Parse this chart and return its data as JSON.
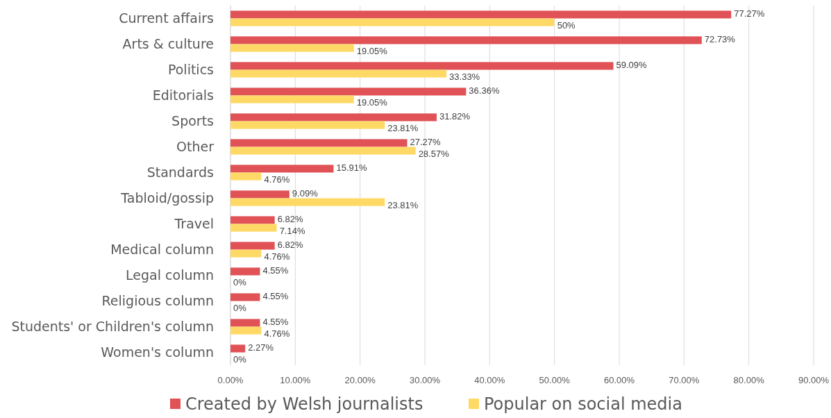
{
  "chart_data": {
    "type": "bar",
    "orientation": "horizontal",
    "categories": [
      "Current affairs",
      "Arts & culture",
      "Politics",
      "Editorials",
      "Sports",
      "Other",
      "Standards",
      "Tabloid/gossip",
      "Travel",
      "Medical column",
      "Legal column",
      "Religious column",
      "Students' or Children's column",
      "Women's column"
    ],
    "series": [
      {
        "name": "Created by Welsh journalists",
        "color": "#e05255",
        "values": [
          77.27,
          72.73,
          59.09,
          36.36,
          31.82,
          27.27,
          15.91,
          9.09,
          6.82,
          6.82,
          4.55,
          4.55,
          4.55,
          2.27
        ],
        "value_labels": [
          "77.27%",
          "72.73%",
          "59.09%",
          "36.36%",
          "31.82%",
          "27.27%",
          "15.91%",
          "9.09%",
          "6.82%",
          "6.82%",
          "4.55%",
          "4.55%",
          "4.55%",
          "2.27%"
        ]
      },
      {
        "name": "Popular on social media",
        "color": "#ffd966",
        "values": [
          50,
          19.05,
          33.33,
          19.05,
          23.81,
          28.57,
          4.76,
          23.81,
          7.14,
          4.76,
          0,
          0,
          4.76,
          0
        ],
        "value_labels": [
          "50%",
          "19.05%",
          "33.33%",
          "19.05%",
          "23.81%",
          "28.57%",
          "4.76%",
          "23.81%",
          "7.14%",
          "4.76%",
          "0%",
          "0%",
          "4.76%",
          "0%"
        ]
      }
    ],
    "xlim": [
      0,
      90
    ],
    "xticks": [
      {
        "value": 0,
        "label": "0.00%"
      },
      {
        "value": 10,
        "label": "10.00%"
      },
      {
        "value": 20,
        "label": "20.00%"
      },
      {
        "value": 30,
        "label": "30.00%"
      },
      {
        "value": 40,
        "label": "40.00%"
      },
      {
        "value": 50,
        "label": "50.00%"
      },
      {
        "value": 60,
        "label": "60.00%"
      },
      {
        "value": 70,
        "label": "70.00%"
      },
      {
        "value": 80,
        "label": "80.00%"
      },
      {
        "value": 90,
        "label": "90.00%"
      }
    ],
    "grid": "x",
    "legend": "bottom"
  }
}
